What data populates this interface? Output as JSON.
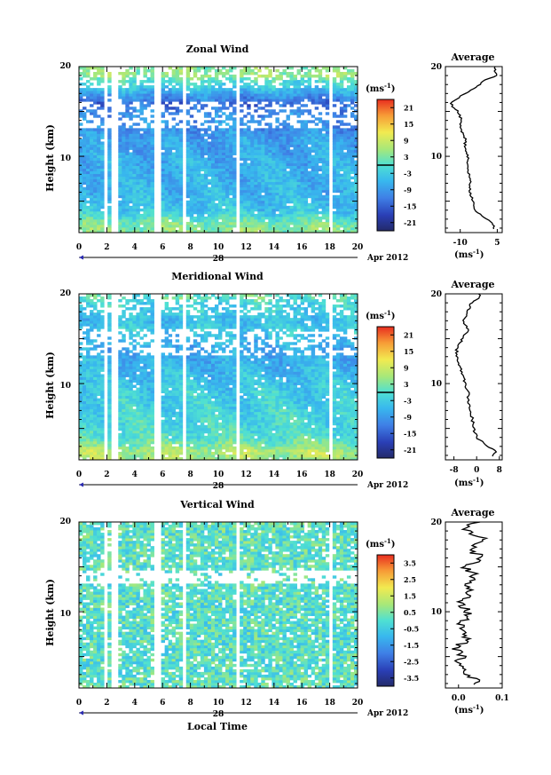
{
  "chart_data": [
    {
      "type": "heatmap",
      "title": "Zonal Wind",
      "ylabel": "Height (km)",
      "xticks": [
        "0",
        "2",
        "4",
        "6",
        "8",
        "10",
        "12",
        "14",
        "16",
        "18",
        "20"
      ],
      "date_label": "28",
      "month_label": "Apr 2012",
      "ylim": [
        1.5,
        20
      ],
      "yticks": [
        "10",
        "20"
      ],
      "colorbar": {
        "unit": "(ms",
        "unit_sup": "-1",
        "unit_close": ")",
        "ticks": [
          "21",
          "15",
          "9",
          "3",
          "-3",
          "-9",
          "-15",
          "-21"
        ],
        "range": [
          -24,
          24
        ],
        "zero_line": 0
      },
      "gap_hours": [
        1.9,
        2.6,
        5.6,
        7.6,
        11.4,
        18.1
      ],
      "profile": {
        "title": "Average",
        "xticks": [
          "-10",
          "5"
        ],
        "xlim": [
          -16,
          7
        ],
        "yticks": [
          "10",
          "20"
        ],
        "xlabel": "(ms",
        "xlabel_sup": "-1",
        "xlabel_close": ")",
        "heights": [
          2,
          2.5,
          3,
          3.5,
          4,
          5,
          6,
          7,
          8,
          9,
          10,
          11,
          12,
          13,
          14,
          15,
          15.5,
          16,
          16.5,
          17,
          17.5,
          18,
          18.5,
          19,
          19.5
        ],
        "values": [
          4,
          3,
          1,
          -2,
          -4,
          -5,
          -6,
          -6,
          -6.5,
          -7,
          -7,
          -8,
          -8,
          -10,
          -9.5,
          -11,
          -13,
          -14,
          -11,
          -8,
          -5,
          -2,
          0,
          5,
          4
        ]
      }
    },
    {
      "type": "heatmap",
      "title": "Meridional Wind",
      "ylabel": "Height (km)",
      "xticks": [
        "0",
        "2",
        "4",
        "6",
        "8",
        "10",
        "12",
        "14",
        "16",
        "18",
        "20"
      ],
      "date_label": "28",
      "month_label": "Apr 2012",
      "ylim": [
        1.5,
        20
      ],
      "yticks": [
        "10",
        "20"
      ],
      "colorbar": {
        "unit": "(ms",
        "unit_sup": "-1",
        "unit_close": ")",
        "ticks": [
          "21",
          "15",
          "9",
          "3",
          "-3",
          "-9",
          "-15",
          "-21"
        ],
        "range": [
          -24,
          24
        ],
        "zero_line": 0
      },
      "gap_hours": [
        1.9,
        2.6,
        5.6,
        7.6,
        11.4,
        18.1
      ],
      "profile": {
        "title": "Average",
        "xticks": [
          "-8",
          "0",
          "8"
        ],
        "xlim": [
          -11,
          9
        ],
        "yticks": [
          "10",
          "20"
        ],
        "xlabel": "(ms",
        "xlabel_sup": "-1",
        "xlabel_close": ")",
        "heights": [
          2,
          2.5,
          3,
          3.5,
          4,
          5,
          6,
          7,
          8,
          9,
          10,
          11,
          12,
          13,
          14,
          15,
          16,
          17,
          18,
          19,
          19.5
        ],
        "values": [
          6,
          7,
          4,
          2,
          0,
          -1,
          -1.5,
          -2,
          -3,
          -3,
          -4,
          -5,
          -6,
          -7,
          -7,
          -5,
          -3,
          -5,
          -3,
          -2,
          1
        ]
      }
    },
    {
      "type": "heatmap",
      "title": "Vertical Wind",
      "ylabel": "Height (km)",
      "xticks": [
        "0",
        "2",
        "4",
        "6",
        "8",
        "10",
        "12",
        "14",
        "16",
        "18",
        "20"
      ],
      "date_label": "28",
      "month_label": "Apr 2012",
      "xlabel": "Local Time",
      "ylim": [
        1.5,
        20
      ],
      "yticks": [
        "10",
        "20"
      ],
      "colorbar": {
        "unit": "(ms",
        "unit_sup": "-1",
        "unit_close": ")",
        "ticks": [
          "3.5",
          "2.5",
          "1.5",
          "0.5",
          "-0.5",
          "-1.5",
          "-2.5",
          "-3.5"
        ],
        "range": [
          -4,
          4
        ],
        "zero_line": null
      },
      "gap_hours": [
        1.9,
        2.6,
        5.6,
        7.6,
        11.4,
        18.1
      ],
      "profile": {
        "title": "Average",
        "xticks": [
          "0.0",
          "0.1"
        ],
        "xlim": [
          -0.03,
          0.1
        ],
        "yticks": [
          "10",
          "20"
        ],
        "xlabel": "(ms",
        "xlabel_sup": "-1",
        "xlabel_close": ")",
        "heights": [
          2,
          3,
          4,
          5,
          6,
          7,
          8,
          9,
          10,
          11,
          12,
          13,
          14,
          15,
          16,
          17,
          18,
          19,
          20
        ],
        "values": [
          0.05,
          0.02,
          0.0,
          0.01,
          -0.01,
          0.02,
          0.0,
          0.01,
          0.02,
          0.0,
          0.03,
          0.01,
          0.04,
          0.02,
          0.05,
          0.03,
          0.06,
          0.02,
          0.04
        ]
      }
    }
  ]
}
